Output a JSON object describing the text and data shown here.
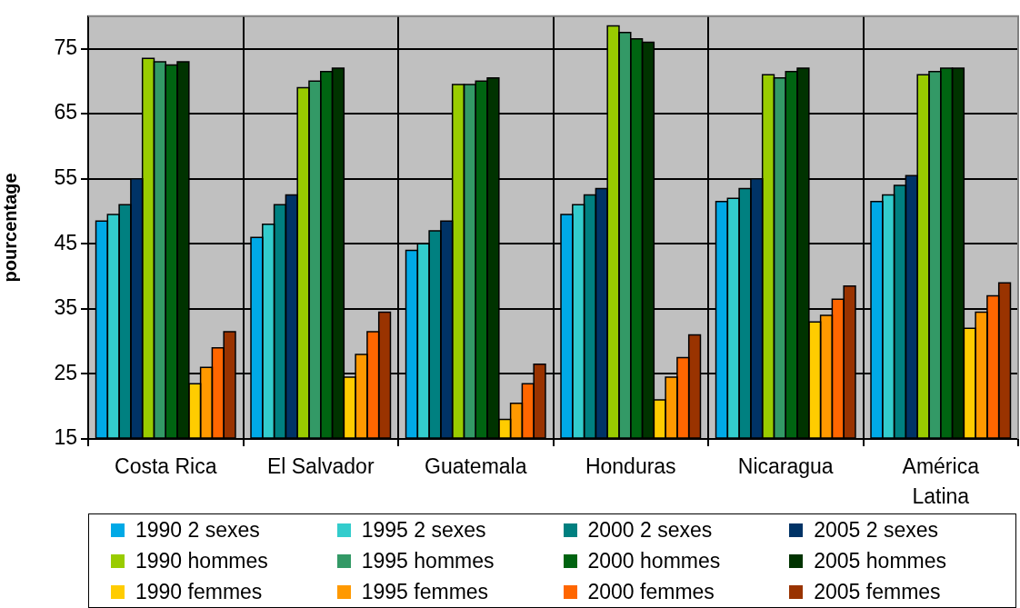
{
  "chart_data": {
    "type": "bar",
    "ylabel": "pourcentage",
    "categories": [
      "Costa Rica",
      "El Salvador",
      "Guatemala",
      "Honduras",
      "Nicaragua",
      "América Latina"
    ],
    "series": [
      {
        "name": "1990 2 sexes",
        "color": "#00a9e6",
        "values": [
          48.5,
          46,
          44,
          49.5,
          51.5,
          51.5
        ]
      },
      {
        "name": "1995 2 sexes",
        "color": "#33cccc",
        "values": [
          49.5,
          48,
          45,
          51,
          52,
          52.5
        ]
      },
      {
        "name": "2000 2 sexes",
        "color": "#008080",
        "values": [
          51,
          51,
          47,
          52.5,
          53.5,
          54
        ]
      },
      {
        "name": "2005 2 sexes",
        "color": "#003366",
        "values": [
          55,
          52.5,
          48.5,
          53.5,
          55,
          55.5
        ]
      },
      {
        "name": "1990 hommes",
        "color": "#99cc00",
        "values": [
          73.5,
          69,
          69.5,
          78.5,
          71,
          71
        ]
      },
      {
        "name": "1995 hommes",
        "color": "#339966",
        "values": [
          73,
          70,
          69.5,
          77.5,
          70.5,
          71.5
        ]
      },
      {
        "name": "2000 hommes",
        "color": "#006411",
        "values": [
          72.5,
          71.5,
          70,
          76.5,
          71.5,
          72
        ]
      },
      {
        "name": "2005 hommes",
        "color": "#003300",
        "values": [
          73,
          72,
          70.5,
          76,
          72,
          72
        ]
      },
      {
        "name": "1990 femmes",
        "color": "#ffcc00",
        "values": [
          23.5,
          24.5,
          18,
          21,
          33,
          32
        ]
      },
      {
        "name": "1995 femmes",
        "color": "#ff9900",
        "values": [
          26,
          28,
          20.5,
          24.5,
          34,
          34.5
        ]
      },
      {
        "name": "2000 femmes",
        "color": "#ff6600",
        "values": [
          29,
          31.5,
          23.5,
          27.5,
          36.5,
          37
        ]
      },
      {
        "name": "2005 femmes",
        "color": "#993300",
        "values": [
          31.5,
          34.5,
          26.5,
          31,
          38.5,
          39
        ]
      }
    ],
    "ylim": [
      15,
      80
    ],
    "yticks": [
      15,
      25,
      35,
      45,
      55,
      65,
      75
    ],
    "grid": true,
    "legend": "bottom"
  }
}
